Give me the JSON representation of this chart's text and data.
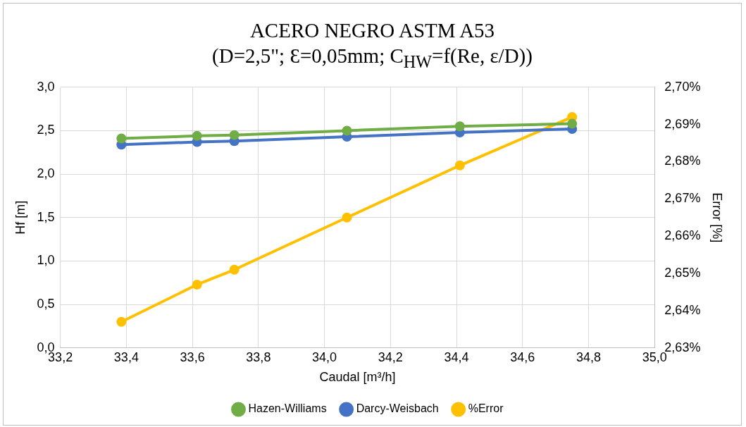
{
  "chart_data": {
    "type": "line",
    "title": "ACERO NEGRO ASTM A53",
    "subtitle": "(D=2,5\";   Ɛ=0,05mm; C$_{HW}$=f(Re, ε/D))",
    "xlabel": "Caudal [m³/h]",
    "ylabel": "Hf [m]",
    "y2label": "Error [%]",
    "x": [
      33.385,
      33.614,
      33.727,
      34.068,
      34.41,
      34.75
    ],
    "series": [
      {
        "name": "Hazen-Williams",
        "color": "#70ad47",
        "values": [
          2.41,
          2.44,
          2.45,
          2.5,
          2.55,
          2.58
        ]
      },
      {
        "name": "Darcy-Weisbach",
        "color": "#4472c4",
        "values": [
          2.34,
          2.37,
          2.38,
          2.43,
          2.48,
          2.52
        ]
      },
      {
        "name": "%Error",
        "color": "#ffc000",
        "axis": "y2",
        "values": [
          2.637,
          2.647,
          2.651,
          2.665,
          2.679,
          2.692
        ]
      }
    ],
    "xlim": [
      33.2,
      35.0
    ],
    "xticks": [
      {
        "value": 33.2,
        "label": "33,2"
      },
      {
        "value": 33.4,
        "label": "33,4"
      },
      {
        "value": 33.6,
        "label": "33,6"
      },
      {
        "value": 33.8,
        "label": "33,8"
      },
      {
        "value": 34.0,
        "label": "34,0"
      },
      {
        "value": 34.2,
        "label": "34,2"
      },
      {
        "value": 34.4,
        "label": "34,4"
      },
      {
        "value": 34.6,
        "label": "34,6"
      },
      {
        "value": 34.8,
        "label": "34,8"
      },
      {
        "value": 35.0,
        "label": "35,0"
      }
    ],
    "ylim": [
      0,
      3
    ],
    "yticks": [
      {
        "value": 0,
        "label": "0,0"
      },
      {
        "value": 0.5,
        "label": "0,5"
      },
      {
        "value": 1,
        "label": "1,0"
      },
      {
        "value": 1.5,
        "label": "1,5"
      },
      {
        "value": 2,
        "label": "2,0"
      },
      {
        "value": 2.5,
        "label": "2,5"
      },
      {
        "value": 3,
        "label": "3,0"
      }
    ],
    "y2lim": [
      2.63,
      2.7
    ],
    "y2ticks": [
      {
        "value": 2.63,
        "label": "2,63%"
      },
      {
        "value": 2.64,
        "label": "2,64%"
      },
      {
        "value": 2.65,
        "label": "2,65%"
      },
      {
        "value": 2.66,
        "label": "2,66%"
      },
      {
        "value": 2.67,
        "label": "2,67%"
      },
      {
        "value": 2.68,
        "label": "2,68%"
      },
      {
        "value": 2.69,
        "label": "2,69%"
      },
      {
        "value": 2.7,
        "label": "2,70%"
      }
    ],
    "grid": true,
    "legend": "bottom",
    "marker": "circle",
    "line_style": "solid"
  }
}
